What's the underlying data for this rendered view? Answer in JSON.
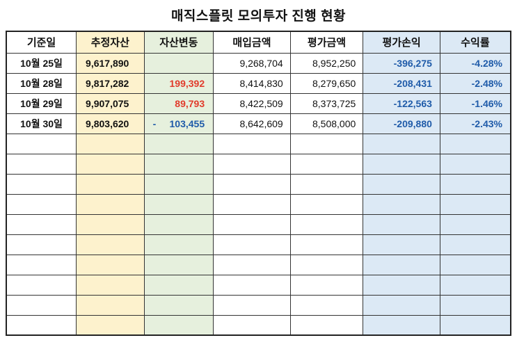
{
  "title": "매직스플릿 모의투자 진행 현황",
  "columns": [
    {
      "key": "date",
      "label": "기준일"
    },
    {
      "key": "assets",
      "label": "추정자산"
    },
    {
      "key": "change",
      "label": "자산변동"
    },
    {
      "key": "purchase",
      "label": "매입금액"
    },
    {
      "key": "valuation",
      "label": "평가금액"
    },
    {
      "key": "profit_loss",
      "label": "평가손익"
    },
    {
      "key": "return_rate",
      "label": "수익률"
    }
  ],
  "rows": [
    {
      "date": "10월 25일",
      "assets": "9,617,890",
      "change_sign": "",
      "change": "",
      "change_color": "",
      "purchase": "9,268,704",
      "valuation": "8,952,250",
      "profit_loss": "-396,275",
      "return_rate": "-4.28%"
    },
    {
      "date": "10월 28일",
      "assets": "9,817,282",
      "change_sign": "",
      "change": "199,392",
      "change_color": "red",
      "purchase": "8,414,830",
      "valuation": "8,279,650",
      "profit_loss": "-208,431",
      "return_rate": "-2.48%"
    },
    {
      "date": "10월 29일",
      "assets": "9,907,075",
      "change_sign": "",
      "change": "89,793",
      "change_color": "red",
      "purchase": "8,422,509",
      "valuation": "8,373,725",
      "profit_loss": "-122,563",
      "return_rate": "-1.46%"
    },
    {
      "date": "10월 30일",
      "assets": "9,803,620",
      "change_sign": "-",
      "change": "103,455",
      "change_color": "blue",
      "purchase": "8,642,609",
      "valuation": "8,508,000",
      "profit_loss": "-209,880",
      "return_rate": "-2.43%"
    }
  ],
  "empty_rows": 10,
  "colors": {
    "assets_bg": "#fdf2cd",
    "change_bg": "#e6f0dd",
    "blue_bg": "#dce9f5",
    "red_text": "#e13b2b",
    "blue_text": "#1f5ba9",
    "border": "#333333"
  }
}
